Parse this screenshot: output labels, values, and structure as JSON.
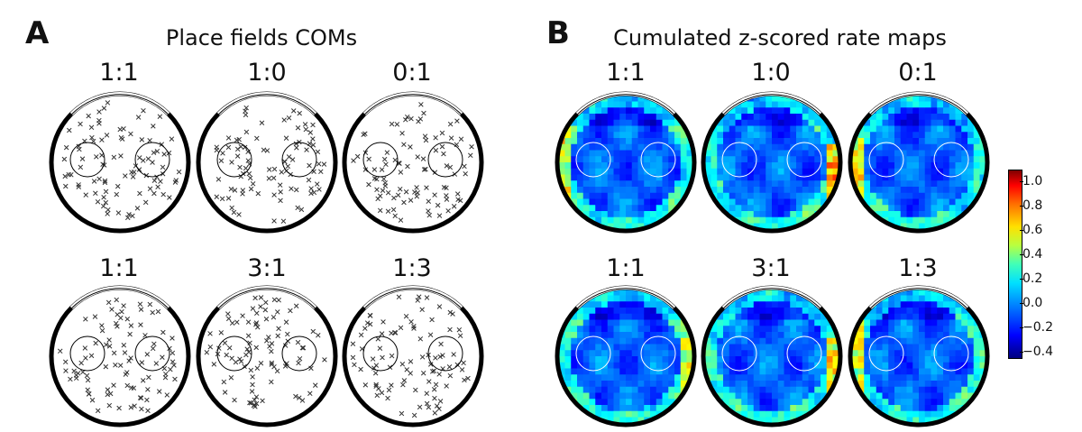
{
  "panel_a": {
    "letter": "A",
    "title": "Place fields COMs",
    "top_labels": [
      "1:1",
      "1:0",
      "0:1"
    ],
    "bottom_labels": [
      "1:1",
      "3:1",
      "1:3"
    ]
  },
  "panel_b": {
    "letter": "B",
    "title": "Cumulated z-scored rate maps",
    "top_labels": [
      "1:1",
      "1:0",
      "0:1"
    ],
    "bottom_labels": [
      "1:1",
      "3:1",
      "1:3"
    ],
    "colorbar": {
      "ticks": [
        "1.0",
        "0.8",
        "0.6",
        "0.4",
        "0.2",
        "0.0",
        "−0.2",
        "−0.4"
      ],
      "range": [
        -0.4,
        1.0
      ]
    }
  },
  "colors": {
    "marker": "#333333",
    "outline": "#000000",
    "background_map": "#1060ff"
  }
}
